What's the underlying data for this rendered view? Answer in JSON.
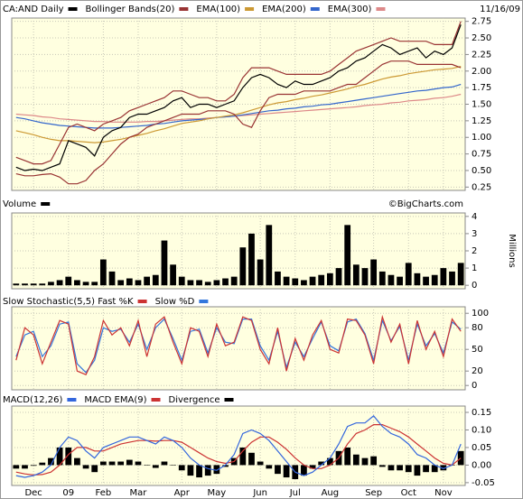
{
  "chart_data": [
    {
      "type": "line",
      "date": "11/16/09",
      "ylim": [
        0.2,
        2.8
      ],
      "yticks": [
        0.25,
        {
          "value": 0.5,
          "label": "0.50"
        },
        0.75,
        {
          "value": 1,
          "label": "1.00"
        },
        1.25,
        {
          "value": 1.5,
          "label": "1.50"
        },
        1.75,
        {
          "value": 2,
          "label": "2.00"
        },
        2.25,
        {
          "value": 2.5,
          "label": "2.50"
        },
        2.75
      ],
      "grid": true,
      "series": [
        {
          "name": "CA:AND Daily",
          "color": "#000000",
          "values": [
            0.55,
            0.5,
            0.52,
            0.5,
            0.55,
            0.6,
            0.95,
            0.9,
            0.85,
            0.72,
            1.0,
            1.1,
            1.15,
            1.3,
            1.35,
            1.35,
            1.4,
            1.45,
            1.55,
            1.6,
            1.45,
            1.5,
            1.5,
            1.45,
            1.5,
            1.55,
            1.75,
            1.9,
            1.95,
            1.9,
            1.8,
            1.75,
            1.85,
            1.8,
            1.8,
            1.85,
            1.9,
            2.0,
            2.05,
            2.15,
            2.2,
            2.3,
            2.4,
            2.35,
            2.25,
            2.3,
            2.35,
            2.2,
            2.3,
            2.25,
            2.35,
            2.7
          ]
        },
        {
          "name": "Bollinger Bands(20)",
          "color": "#993333",
          "values": [
            0.7,
            0.65,
            0.6,
            0.6,
            0.65,
            0.9,
            1.15,
            1.2,
            1.15,
            1.1,
            1.2,
            1.25,
            1.3,
            1.4,
            1.45,
            1.5,
            1.55,
            1.6,
            1.7,
            1.7,
            1.65,
            1.6,
            1.6,
            1.55,
            1.55,
            1.65,
            1.9,
            2.05,
            2.05,
            2.05,
            2.0,
            1.95,
            1.95,
            1.95,
            1.95,
            1.95,
            2.0,
            2.1,
            2.2,
            2.3,
            2.35,
            2.4,
            2.45,
            2.5,
            2.45,
            2.45,
            2.45,
            2.45,
            2.4,
            2.4,
            2.4,
            2.75
          ],
          "lower": [
            0.45,
            0.42,
            0.42,
            0.44,
            0.45,
            0.4,
            0.3,
            0.3,
            0.35,
            0.5,
            0.6,
            0.75,
            0.9,
            1.0,
            1.05,
            1.15,
            1.2,
            1.25,
            1.3,
            1.35,
            1.35,
            1.35,
            1.4,
            1.4,
            1.4,
            1.35,
            1.2,
            1.15,
            1.4,
            1.6,
            1.65,
            1.65,
            1.65,
            1.7,
            1.7,
            1.7,
            1.7,
            1.75,
            1.8,
            1.8,
            1.9,
            2.0,
            2.1,
            2.15,
            2.15,
            2.15,
            2.1,
            2.1,
            2.1,
            2.1,
            2.1,
            2.05
          ]
        },
        {
          "name": "EMA(100)",
          "color": "#cc9933",
          "values": [
            1.1,
            1.07,
            1.04,
            1.0,
            0.97,
            0.95,
            0.95,
            0.94,
            0.93,
            0.92,
            0.93,
            0.95,
            0.97,
            1.0,
            1.03,
            1.06,
            1.1,
            1.13,
            1.17,
            1.21,
            1.23,
            1.25,
            1.28,
            1.3,
            1.32,
            1.34,
            1.37,
            1.41,
            1.45,
            1.49,
            1.52,
            1.54,
            1.57,
            1.59,
            1.62,
            1.64,
            1.67,
            1.7,
            1.73,
            1.77,
            1.8,
            1.84,
            1.88,
            1.91,
            1.93,
            1.96,
            1.98,
            2.0,
            2.02,
            2.03,
            2.04,
            2.07
          ]
        },
        {
          "name": "EMA(200)",
          "color": "#3366cc",
          "values": [
            1.3,
            1.28,
            1.25,
            1.22,
            1.2,
            1.18,
            1.17,
            1.16,
            1.15,
            1.14,
            1.14,
            1.14,
            1.15,
            1.16,
            1.17,
            1.18,
            1.2,
            1.21,
            1.23,
            1.25,
            1.26,
            1.27,
            1.28,
            1.3,
            1.31,
            1.32,
            1.34,
            1.36,
            1.38,
            1.4,
            1.41,
            1.43,
            1.44,
            1.46,
            1.47,
            1.49,
            1.5,
            1.52,
            1.54,
            1.56,
            1.58,
            1.6,
            1.62,
            1.64,
            1.66,
            1.68,
            1.7,
            1.71,
            1.73,
            1.75,
            1.76,
            1.8
          ]
        },
        {
          "name": "EMA(300)",
          "color": "#dd8888",
          "values": [
            1.35,
            1.34,
            1.33,
            1.31,
            1.3,
            1.28,
            1.27,
            1.26,
            1.25,
            1.24,
            1.24,
            1.23,
            1.23,
            1.23,
            1.23,
            1.24,
            1.24,
            1.25,
            1.26,
            1.27,
            1.28,
            1.28,
            1.29,
            1.3,
            1.31,
            1.32,
            1.33,
            1.34,
            1.35,
            1.36,
            1.37,
            1.38,
            1.39,
            1.4,
            1.41,
            1.42,
            1.43,
            1.44,
            1.45,
            1.46,
            1.48,
            1.49,
            1.5,
            1.52,
            1.53,
            1.55,
            1.56,
            1.57,
            1.59,
            1.6,
            1.62,
            1.65
          ]
        }
      ]
    },
    {
      "type": "bar",
      "credit": "©BigCharts.com",
      "y_label": "Millions",
      "ylim": [
        -0.2,
        4.2
      ],
      "yticks": [
        0,
        1,
        2,
        3,
        4
      ],
      "grid": true,
      "series": [
        {
          "name": "Volume",
          "color": "#000000",
          "values": [
            0.1,
            0.1,
            0.1,
            0.1,
            0.2,
            0.3,
            0.5,
            0.3,
            0.2,
            0.2,
            1.5,
            0.8,
            0.3,
            0.4,
            0.3,
            0.5,
            0.6,
            2.6,
            1.2,
            0.5,
            0.3,
            0.3,
            0.2,
            0.3,
            0.4,
            0.5,
            2.2,
            3.0,
            1.5,
            3.5,
            0.8,
            0.5,
            0.4,
            0.3,
            0.5,
            0.6,
            0.7,
            1.0,
            3.5,
            1.2,
            1.0,
            1.5,
            0.8,
            0.6,
            0.5,
            1.3,
            0.7,
            0.5,
            0.6,
            1.0,
            0.8,
            1.3
          ]
        }
      ]
    },
    {
      "type": "line",
      "ylim": [
        -6,
        109
      ],
      "yticks": [
        0,
        20,
        50,
        80,
        100
      ],
      "grid": true,
      "series": [
        {
          "name": "Slow Stochastic(5,5) Fast %K",
          "color": "#cc3333",
          "values": [
            35,
            80,
            70,
            30,
            60,
            90,
            85,
            20,
            15,
            40,
            90,
            70,
            80,
            55,
            90,
            40,
            85,
            95,
            60,
            30,
            80,
            75,
            40,
            85,
            55,
            60,
            95,
            90,
            50,
            30,
            80,
            20,
            65,
            35,
            70,
            90,
            50,
            45,
            92,
            90,
            70,
            30,
            95,
            60,
            85,
            30,
            90,
            50,
            75,
            40,
            92,
            75
          ]
        },
        {
          "name": "Slow %D",
          "color": "#3377dd",
          "values": [
            40,
            70,
            75,
            40,
            55,
            85,
            88,
            30,
            18,
            35,
            80,
            75,
            78,
            60,
            85,
            50,
            80,
            92,
            65,
            35,
            75,
            78,
            45,
            80,
            60,
            58,
            92,
            92,
            55,
            35,
            75,
            25,
            60,
            40,
            65,
            88,
            55,
            48,
            88,
            92,
            72,
            35,
            90,
            62,
            82,
            35,
            85,
            55,
            72,
            45,
            88,
            78
          ]
        }
      ]
    },
    {
      "type": "line",
      "ylim": [
        -0.058,
        0.168
      ],
      "yticks": [
        -0.05,
        {
          "value": 0,
          "label": "0.00"
        },
        0.05,
        {
          "value": 0.1,
          "label": "0.10"
        },
        0.15
      ],
      "grid": true,
      "categories": [
        null,
        null,
        "Dec",
        null,
        null,
        null,
        "09",
        null,
        null,
        null,
        "Feb",
        null,
        null,
        null,
        "Mar",
        null,
        null,
        null,
        null,
        "Apr",
        null,
        null,
        null,
        "May",
        null,
        null,
        null,
        null,
        "Jun",
        null,
        null,
        null,
        "Jul",
        null,
        null,
        null,
        "Aug",
        null,
        null,
        null,
        null,
        "Sep",
        null,
        null,
        null,
        "Oct",
        null,
        null,
        null,
        "Nov",
        null,
        null
      ],
      "series": [
        {
          "name": "MACD(12,26)",
          "color": "#3366dd",
          "values": [
            -0.03,
            -0.035,
            -0.03,
            -0.02,
            0.0,
            0.05,
            0.08,
            0.07,
            0.04,
            0.02,
            0.05,
            0.06,
            0.07,
            0.08,
            0.08,
            0.07,
            0.06,
            0.08,
            0.07,
            0.05,
            0.02,
            0.0,
            -0.01,
            -0.015,
            0.0,
            0.03,
            0.09,
            0.1,
            0.09,
            0.07,
            0.04,
            0.01,
            -0.02,
            -0.03,
            -0.02,
            0.0,
            0.02,
            0.06,
            0.11,
            0.12,
            0.12,
            0.14,
            0.11,
            0.09,
            0.08,
            0.06,
            0.03,
            0.02,
            0.0,
            -0.01,
            0.0,
            0.06
          ]
        },
        {
          "name": "MACD EMA(9)",
          "color": "#cc3333",
          "values": [
            -0.02,
            -0.025,
            -0.028,
            -0.027,
            -0.02,
            0.0,
            0.03,
            0.05,
            0.05,
            0.04,
            0.04,
            0.05,
            0.06,
            0.065,
            0.07,
            0.07,
            0.068,
            0.07,
            0.07,
            0.065,
            0.05,
            0.035,
            0.02,
            0.01,
            0.005,
            0.01,
            0.04,
            0.065,
            0.08,
            0.08,
            0.065,
            0.045,
            0.02,
            0.0,
            -0.01,
            -0.01,
            0.0,
            0.02,
            0.06,
            0.09,
            0.1,
            0.115,
            0.115,
            0.105,
            0.095,
            0.08,
            0.06,
            0.04,
            0.02,
            0.005,
            0.0,
            0.02
          ]
        },
        {
          "name": "Divergence",
          "color": "#000000",
          "type": "bar",
          "values": [
            -0.01,
            -0.01,
            -0.002,
            0.007,
            0.02,
            0.05,
            0.05,
            0.02,
            -0.01,
            -0.02,
            0.01,
            0.01,
            0.01,
            0.015,
            0.01,
            0.0,
            -0.008,
            0.01,
            0.0,
            -0.015,
            -0.03,
            -0.035,
            -0.03,
            -0.025,
            -0.005,
            0.02,
            0.05,
            0.035,
            0.01,
            -0.01,
            -0.025,
            -0.035,
            -0.04,
            -0.03,
            -0.01,
            0.01,
            0.02,
            0.04,
            0.05,
            0.03,
            0.02,
            0.025,
            -0.005,
            -0.015,
            -0.015,
            -0.02,
            -0.03,
            -0.02,
            -0.02,
            -0.015,
            0.0,
            0.04
          ]
        }
      ]
    }
  ]
}
